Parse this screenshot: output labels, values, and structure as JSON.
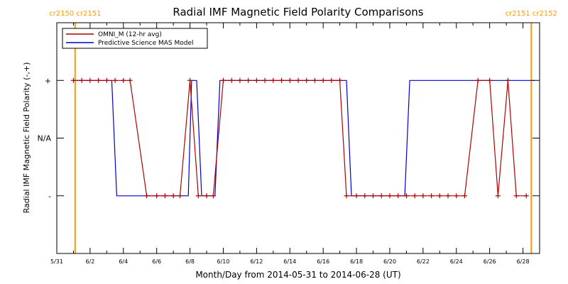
{
  "chart_data": {
    "type": "line",
    "title": "Radial IMF Magnetic Field Polarity Comparisons",
    "xlabel": "Month/Day from 2014-05-31 to 2014-06-28 (UT)",
    "ylabel": "Radial IMF Magnetic Field Polarity (-,+)",
    "x_tick_labels": [
      "5/31",
      "6/2",
      "6/4",
      "6/6",
      "6/8",
      "6/10",
      "6/12",
      "6/14",
      "6/16",
      "6/18",
      "6/20",
      "6/22",
      "6/24",
      "6/26",
      "6/28"
    ],
    "x_tick_days": [
      0,
      2,
      4,
      6,
      8,
      10,
      12,
      14,
      16,
      18,
      20,
      22,
      24,
      26,
      28
    ],
    "xlim": [
      0,
      29
    ],
    "y_tick_labels": [
      "+",
      "N/A",
      "-"
    ],
    "y_tick_values": [
      1,
      0,
      -1
    ],
    "ylim": [
      -2,
      2
    ],
    "carrington_markers": [
      {
        "label": "cr2150 cr2151",
        "day": 1.1
      },
      {
        "label": "cr2151 cr2152",
        "day": 28.5
      }
    ],
    "legend": "top-left",
    "colors": {
      "omni": "#b00000",
      "model": "#0000cc",
      "carrington": "#ff9900",
      "frame": "#000000"
    },
    "series": [
      {
        "name": "OMNI_M (12-hr avg)",
        "color": "#b00000",
        "marker": "plus",
        "points": [
          [
            1.0,
            1
          ],
          [
            1.5,
            1
          ],
          [
            2.0,
            1
          ],
          [
            2.5,
            1
          ],
          [
            3.0,
            1
          ],
          [
            3.5,
            1
          ],
          [
            4.0,
            1
          ],
          [
            4.4,
            1
          ],
          [
            5.4,
            -1
          ],
          [
            6.0,
            -1
          ],
          [
            6.5,
            -1
          ],
          [
            7.0,
            -1
          ],
          [
            7.4,
            -1
          ],
          [
            8.0,
            1
          ],
          [
            8.5,
            -1
          ],
          [
            9.0,
            -1
          ],
          [
            9.4,
            -1
          ],
          [
            10.0,
            1
          ],
          [
            10.5,
            1
          ],
          [
            11.0,
            1
          ],
          [
            11.5,
            1
          ],
          [
            12.0,
            1
          ],
          [
            12.5,
            1
          ],
          [
            13.0,
            1
          ],
          [
            13.5,
            1
          ],
          [
            14.0,
            1
          ],
          [
            14.5,
            1
          ],
          [
            15.0,
            1
          ],
          [
            15.5,
            1
          ],
          [
            16.0,
            1
          ],
          [
            16.5,
            1
          ],
          [
            17.0,
            1
          ],
          [
            17.4,
            -1
          ],
          [
            18.0,
            -1
          ],
          [
            18.5,
            -1
          ],
          [
            19.0,
            -1
          ],
          [
            19.5,
            -1
          ],
          [
            20.0,
            -1
          ],
          [
            20.5,
            -1
          ],
          [
            21.0,
            -1
          ],
          [
            21.5,
            -1
          ],
          [
            22.0,
            -1
          ],
          [
            22.5,
            -1
          ],
          [
            23.0,
            -1
          ],
          [
            23.5,
            -1
          ],
          [
            24.0,
            -1
          ],
          [
            24.5,
            -1
          ],
          [
            25.3,
            1
          ],
          [
            26.0,
            1
          ],
          [
            26.5,
            -1
          ],
          [
            27.1,
            1
          ],
          [
            27.6,
            -1
          ],
          [
            28.2,
            -1
          ]
        ]
      },
      {
        "name": "Predictive Science MAS Model",
        "color": "#0000cc",
        "marker": "none",
        "points": [
          [
            1.0,
            1
          ],
          [
            3.3,
            1
          ],
          [
            3.6,
            -1
          ],
          [
            7.9,
            -1
          ],
          [
            8.1,
            1
          ],
          [
            8.4,
            1
          ],
          [
            8.7,
            -1
          ],
          [
            9.5,
            -1
          ],
          [
            9.8,
            1
          ],
          [
            17.4,
            1
          ],
          [
            17.7,
            -1
          ],
          [
            20.9,
            -1
          ],
          [
            21.2,
            1
          ],
          [
            28.7,
            1
          ]
        ]
      }
    ]
  }
}
